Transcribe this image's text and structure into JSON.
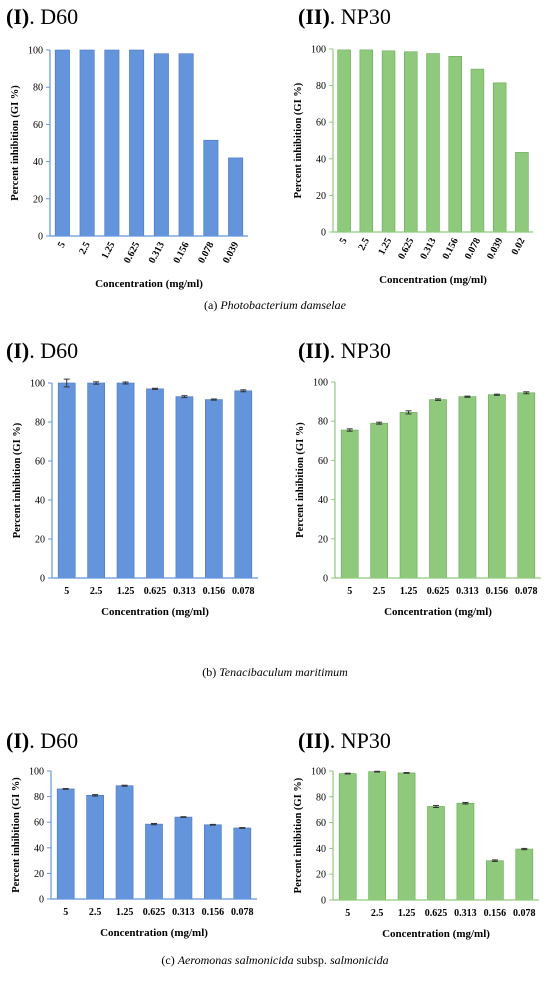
{
  "colors": {
    "d60": "#6495dc",
    "d60_edge": "#4a78bf",
    "np30": "#8fca7c",
    "np30_edge": "#66a955",
    "error_bar": "#333333"
  },
  "rows": [
    {
      "caption_prefix": "(a) ",
      "caption_italic": "Photobacterium damselae",
      "caption_mid": "",
      "caption_italic2": "",
      "caption_suffix": ""
    },
    {
      "caption_prefix": "(b) ",
      "caption_italic": "Tenacibaculum maritimum",
      "caption_mid": "",
      "caption_italic2": "",
      "caption_suffix": ""
    },
    {
      "caption_prefix": "(c) ",
      "caption_italic": "Aeromonas salmonicida",
      "caption_mid": " subsp. ",
      "caption_italic2": "salmonicida",
      "caption_suffix": ""
    }
  ],
  "chart_data": [
    {
      "id": "a-d60",
      "type": "bar",
      "title_roman": "(I)",
      "title_rest": ". D60",
      "color": "d60",
      "categories": [
        "5",
        "2.5",
        "1.25",
        "0.625",
        "0.313",
        "0.156",
        "0.078",
        "0.039"
      ],
      "values": [
        100,
        100,
        100,
        100,
        98,
        98,
        51.5,
        42
      ],
      "errors": [
        0,
        0,
        0,
        0,
        0,
        0,
        0,
        0
      ],
      "ylim": [
        0,
        100
      ],
      "yticks": [
        0,
        20,
        40,
        60,
        80,
        100
      ],
      "ylabel": "Percent inhibition (GI %)",
      "xlabel": "Concentration (mg/ml)",
      "rotated_ticks": true
    },
    {
      "id": "a-np30",
      "type": "bar",
      "title_roman": "(II)",
      "title_rest": ". NP30",
      "color": "np30",
      "categories": [
        "5",
        "2.5",
        "1.25",
        "0.625",
        "0.313",
        "0.156",
        "0.078",
        "0.039",
        "0.02"
      ],
      "values": [
        99.5,
        99.5,
        99,
        98.5,
        97.5,
        96,
        89,
        81.5,
        43.5
      ],
      "errors": [
        0,
        0,
        0,
        0,
        0,
        0,
        0,
        0,
        0
      ],
      "ylim": [
        0,
        100
      ],
      "yticks": [
        0,
        20,
        40,
        60,
        80,
        100
      ],
      "ylabel": "Percent inhibition (GI %)",
      "xlabel": "Concentration (mg/ml)",
      "rotated_ticks": true
    },
    {
      "id": "b-d60",
      "type": "bar",
      "title_roman": "(I)",
      "title_rest": ". D60",
      "color": "d60",
      "categories": [
        "5",
        "2.5",
        "1.25",
        "0.625",
        "0.313",
        "0.156",
        "0.078"
      ],
      "values": [
        100,
        100,
        100,
        97,
        93,
        91.5,
        96
      ],
      "errors": [
        2,
        0.6,
        0.5,
        0.3,
        0.5,
        0.3,
        0.5
      ],
      "ylim": [
        0,
        100
      ],
      "yticks": [
        0,
        20,
        40,
        60,
        80,
        100
      ],
      "ylabel": "Percent inhibition (GI %)",
      "xlabel": "Concentration (mg/ml)",
      "rotated_ticks": false
    },
    {
      "id": "b-np30",
      "type": "bar",
      "title_roman": "(II)",
      "title_rest": ". NP30",
      "color": "np30",
      "categories": [
        "5",
        "2.5",
        "1.25",
        "0.625",
        "0.313",
        "0.156",
        "0.078"
      ],
      "values": [
        75.5,
        79,
        84.5,
        91,
        92.5,
        93.5,
        94.5
      ],
      "errors": [
        0.6,
        0.5,
        0.8,
        0.4,
        0.3,
        0.3,
        0.5
      ],
      "ylim": [
        0,
        100
      ],
      "yticks": [
        0,
        20,
        40,
        60,
        80,
        100
      ],
      "ylabel": "Percent inhibition (GI %)",
      "xlabel": "Concentration (mg/ml)",
      "rotated_ticks": false
    },
    {
      "id": "c-d60",
      "type": "bar",
      "title_roman": "(I)",
      "title_rest": ". D60",
      "color": "d60",
      "categories": [
        "5",
        "2.5",
        "1.25",
        "0.625",
        "0.313",
        "0.156",
        "0.078"
      ],
      "values": [
        86,
        81,
        88.5,
        58.5,
        64,
        58,
        55.5
      ],
      "errors": [
        0.3,
        0.6,
        0.4,
        0.5,
        0.3,
        0.3,
        0.3
      ],
      "ylim": [
        0,
        100
      ],
      "yticks": [
        0,
        20,
        40,
        60,
        80,
        100
      ],
      "ylabel": "Percent inhibition (GI %)",
      "xlabel": "Concentration (mg/ml)",
      "rotated_ticks": false
    },
    {
      "id": "c-np30",
      "type": "bar",
      "title_roman": "(II)",
      "title_rest": ". NP30",
      "color": "np30",
      "categories": [
        "5",
        "2.5",
        "1.25",
        "0.625",
        "0.313",
        "0.156",
        "0.078"
      ],
      "values": [
        98,
        99.5,
        98.5,
        72.5,
        75,
        30.5,
        39.5
      ],
      "errors": [
        0.3,
        0.3,
        0.3,
        0.8,
        0.6,
        0.6,
        0.5
      ],
      "ylim": [
        0,
        100
      ],
      "yticks": [
        0,
        20,
        40,
        60,
        80,
        100
      ],
      "ylabel": "Percent inhibition (GI %)",
      "xlabel": "Concentration (mg/ml)",
      "rotated_ticks": false
    }
  ]
}
